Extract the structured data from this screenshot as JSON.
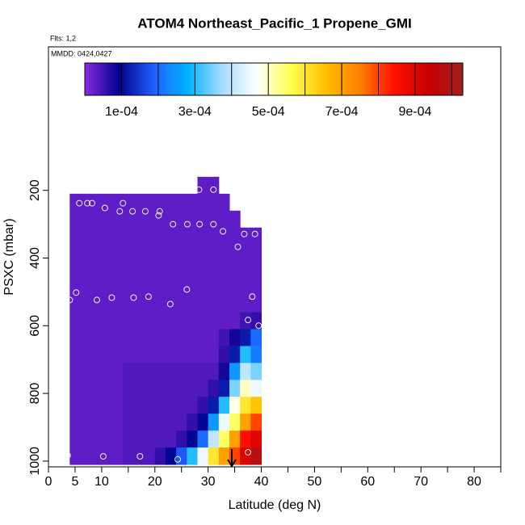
{
  "chart_data": {
    "type": "curtain",
    "title": "ATOM4 Northeast_Pacific_1 Propene_GMI",
    "flights": "Flts: 1,2",
    "dates": "MMDD: 0424,0427",
    "xlabel": "Latitude (deg N)",
    "ylabel": "PSXC (mbar)",
    "xlim": [
      0,
      85
    ],
    "ylim": [
      1017,
      -224
    ],
    "xticks": [
      0,
      5,
      10,
      20,
      30,
      40,
      50,
      60,
      70,
      80
    ],
    "x_minor_ticks": [
      15,
      25,
      35,
      45,
      55,
      65,
      75,
      85
    ],
    "yticks": [
      200,
      400,
      600,
      800,
      1000
    ],
    "clim": [
      0,
      0.00103
    ],
    "colormap": [
      "#8a2be2",
      "#00008b",
      "#2060ff",
      "#00b4ff",
      "#a8dcff",
      "#ffffff",
      "#ffff50",
      "#ffc000",
      "#ff8000",
      "#ff1000",
      "#c80000",
      "#a02020"
    ],
    "colorbar_breaks": [
      0.0001,
      0.0002,
      0.0003,
      0.0004,
      0.0005,
      0.0006,
      0.0007,
      0.0008,
      0.0009,
      0.001
    ],
    "colorbar_ticks": [
      {
        "value": 0.0001,
        "label": "1e-04"
      },
      {
        "value": 0.0003,
        "label": "3e-04"
      },
      {
        "value": 0.0005,
        "label": "5e-04"
      },
      {
        "value": 0.0007,
        "label": "7e-04"
      },
      {
        "value": 0.0009,
        "label": "9e-04"
      }
    ],
    "lat_edges": [
      4,
      6,
      8,
      10,
      12,
      14,
      16,
      18,
      20,
      22,
      24,
      26,
      28,
      30,
      32,
      34,
      36,
      38,
      40
    ],
    "p_edges": [
      160,
      210,
      260,
      310,
      360,
      410,
      460,
      510,
      560,
      610,
      660,
      710,
      760,
      810,
      860,
      910,
      960,
      1010
    ],
    "values": [
      [
        null,
        null,
        null,
        null,
        null,
        null,
        null,
        null,
        null,
        null,
        null,
        null,
        3e-05,
        3e-05,
        null,
        null,
        null,
        null
      ],
      [
        3e-05,
        3e-05,
        3e-05,
        3e-05,
        3e-05,
        3e-05,
        3e-05,
        3e-05,
        3e-05,
        3e-05,
        3e-05,
        3e-05,
        3e-05,
        3e-05,
        3e-05,
        null,
        null,
        null
      ],
      [
        3e-05,
        3e-05,
        3e-05,
        3e-05,
        3e-05,
        3e-05,
        3e-05,
        3e-05,
        3e-05,
        3e-05,
        3e-05,
        3e-05,
        3e-05,
        3e-05,
        3e-05,
        3e-05,
        null,
        null
      ],
      [
        3e-05,
        3e-05,
        3e-05,
        3e-05,
        3e-05,
        3e-05,
        3e-05,
        3e-05,
        3e-05,
        3e-05,
        3e-05,
        3e-05,
        3e-05,
        3e-05,
        3e-05,
        3e-05,
        3e-05,
        3e-05
      ],
      [
        3e-05,
        3e-05,
        3e-05,
        3e-05,
        3e-05,
        3e-05,
        3e-05,
        3e-05,
        3e-05,
        3e-05,
        3e-05,
        3e-05,
        3e-05,
        3e-05,
        3e-05,
        3e-05,
        3e-05,
        3e-05
      ],
      [
        3e-05,
        3e-05,
        3e-05,
        3e-05,
        3e-05,
        3e-05,
        3e-05,
        3e-05,
        3e-05,
        3e-05,
        3e-05,
        3e-05,
        3e-05,
        3e-05,
        3e-05,
        3e-05,
        3e-05,
        3e-05
      ],
      [
        3e-05,
        3e-05,
        3e-05,
        3e-05,
        3e-05,
        3e-05,
        3e-05,
        3e-05,
        3e-05,
        3e-05,
        3e-05,
        3e-05,
        3e-05,
        3e-05,
        3e-05,
        3e-05,
        3e-05,
        3e-05
      ],
      [
        3e-05,
        3e-05,
        3e-05,
        3e-05,
        3e-05,
        3e-05,
        3e-05,
        3e-05,
        3e-05,
        3e-05,
        3e-05,
        3e-05,
        3e-05,
        3e-05,
        3e-05,
        3e-05,
        3e-05,
        3e-05
      ],
      [
        3e-05,
        3e-05,
        3e-05,
        3e-05,
        3e-05,
        3e-05,
        3e-05,
        3e-05,
        3e-05,
        3e-05,
        3e-05,
        3e-05,
        3e-05,
        3e-05,
        3e-05,
        3e-05,
        5e-05,
        6e-05
      ],
      [
        3e-05,
        3e-05,
        3e-05,
        3e-05,
        3e-05,
        3e-05,
        3e-05,
        3e-05,
        3e-05,
        3e-05,
        3e-05,
        3e-05,
        3e-05,
        3e-05,
        5e-05,
        8e-05,
        0.00012,
        0.0002
      ],
      [
        3e-05,
        3e-05,
        3e-05,
        3e-05,
        3e-05,
        3e-05,
        3e-05,
        3e-05,
        3e-05,
        3e-05,
        3e-05,
        3e-05,
        3e-05,
        3e-05,
        6e-05,
        0.00012,
        0.0003,
        0.00022
      ],
      [
        3e-05,
        3e-05,
        3e-05,
        3e-05,
        3e-05,
        4e-05,
        4e-05,
        4e-05,
        4e-05,
        4e-05,
        4e-05,
        4e-05,
        4e-05,
        4e-05,
        8e-05,
        0.00025,
        0.0004,
        0.00035
      ],
      [
        3e-05,
        3e-05,
        3e-05,
        3e-05,
        3e-05,
        4e-05,
        4e-05,
        4e-05,
        4e-05,
        4e-05,
        4e-05,
        4e-05,
        4e-05,
        6e-05,
        0.00012,
        0.00035,
        0.0005,
        0.00045
      ],
      [
        3e-05,
        3e-05,
        3e-05,
        3e-05,
        3e-05,
        4e-05,
        4e-05,
        4e-05,
        4e-05,
        4e-05,
        4e-05,
        4e-05,
        6e-05,
        0.00012,
        0.0003,
        0.00048,
        0.0006,
        0.00065
      ],
      [
        3e-05,
        3e-05,
        3e-05,
        3e-05,
        3e-05,
        4e-05,
        4e-05,
        4e-05,
        4e-05,
        4e-05,
        4e-05,
        6e-05,
        0.0001,
        0.00025,
        0.00045,
        0.00055,
        0.0007,
        0.0008
      ],
      [
        3e-05,
        3e-05,
        3e-05,
        3e-05,
        3e-05,
        4e-05,
        4e-05,
        4e-05,
        4e-05,
        4e-05,
        6e-05,
        0.0001,
        0.0002,
        0.0004,
        0.00055,
        0.0007,
        0.00085,
        0.0009
      ],
      [
        3e-05,
        3e-05,
        3e-05,
        3e-05,
        3e-05,
        4e-05,
        4e-05,
        4e-05,
        6e-05,
        0.0001,
        0.00018,
        0.0003,
        0.00045,
        0.0006,
        0.0007,
        0.0008,
        0.0009,
        0.00098
      ]
    ],
    "flight_track": {
      "x": [
        5.8,
        7.3,
        8.2,
        10.6,
        13.4,
        14.0,
        15.8,
        18.2,
        20.7,
        20.9,
        23.4,
        26.1,
        28.4,
        28.3,
        31.0,
        31.0,
        32.8,
        35.6,
        36.8,
        38.8,
        4.0,
        5.2,
        9.1,
        11.9,
        16.0,
        18.8,
        22.9,
        26.0,
        38.3,
        37.5,
        39.5,
        3.6,
        10.3,
        17.2,
        24.3,
        37.5
      ],
      "y": [
        238,
        238,
        238,
        252,
        262,
        238,
        262,
        262,
        274,
        262,
        300,
        300,
        300,
        198,
        198,
        300,
        321,
        367,
        329,
        329,
        524,
        502,
        524,
        517,
        517,
        514,
        536,
        493,
        514,
        583,
        600,
        983,
        986,
        986,
        995,
        974
      ]
    }
  }
}
